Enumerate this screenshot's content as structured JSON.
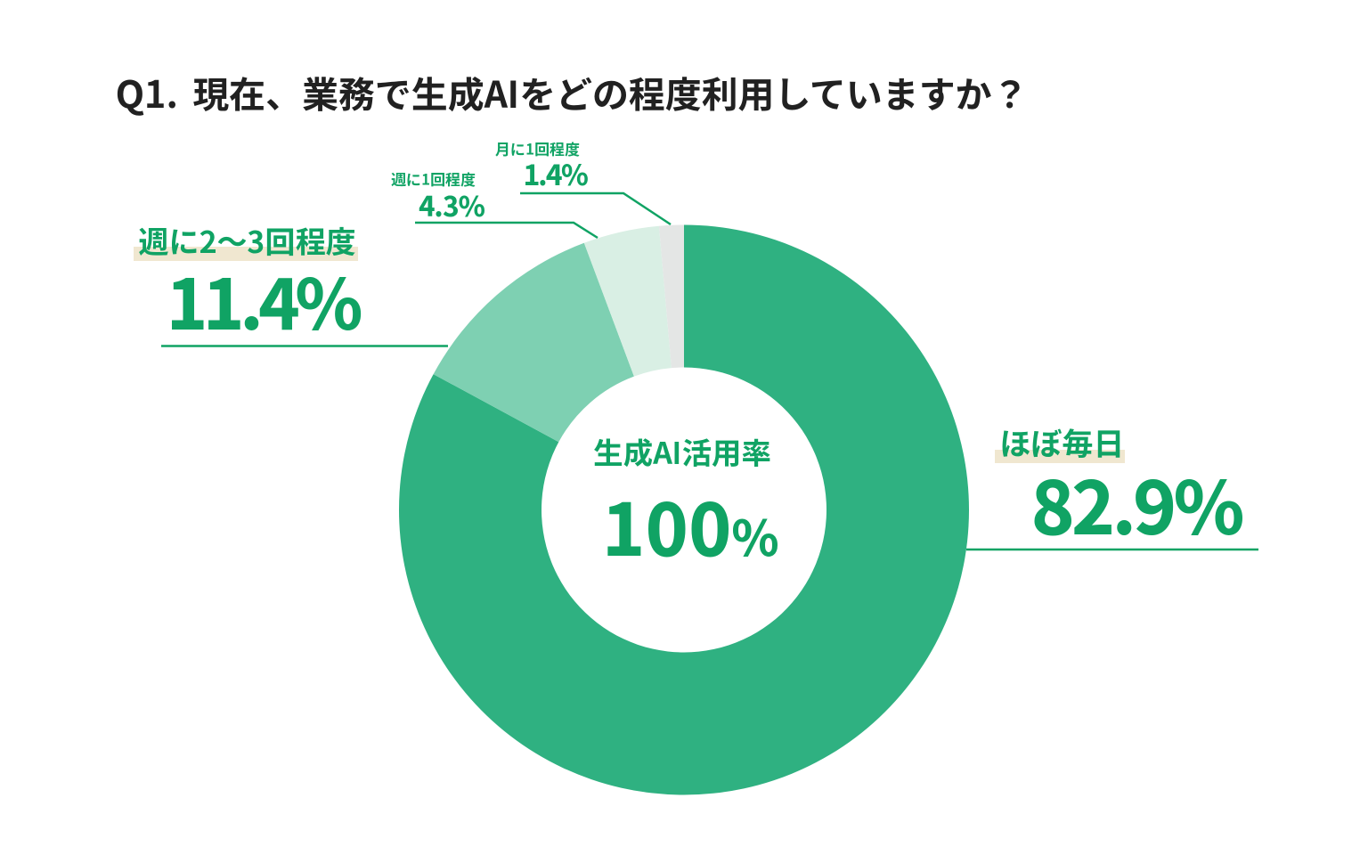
{
  "title": {
    "full": "Q1. 現在、業務で生成AIをどの程度利用していますか？",
    "prefix": "Q1.",
    "main": "現在、業務で生成AIをどの程度利用していますか？"
  },
  "center": {
    "label": "生成AI活用率",
    "value": "100",
    "unit": "%"
  },
  "colors": {
    "background": "#ffffff",
    "title_text": "#212121",
    "accent_text": "#10a364",
    "leader_line": "#10a364",
    "label_highlight": "#f0e7d0"
  },
  "chart_data": {
    "type": "pie",
    "subtype": "donut",
    "title": "Q1. 現在、業務で生成AIをどの程度利用していますか？",
    "center_label": "生成AI活用率",
    "center_value": "100%",
    "categories": [
      "ほぼ毎日",
      "週に2〜3回程度",
      "週に1回程度",
      "月に1回程度"
    ],
    "values": [
      82.9,
      11.4,
      4.3,
      1.4
    ],
    "unit": "%",
    "segments": [
      {
        "label": "ほぼ毎日",
        "value": 82.9,
        "display": "82.9%",
        "color": "#2fb181"
      },
      {
        "label": "週に2〜3回程度",
        "value": 11.4,
        "display": "11.4%",
        "color": "#7ed0b2"
      },
      {
        "label": "週に1回程度",
        "value": 4.3,
        "display": "4.3%",
        "color": "#d9efe4"
      },
      {
        "label": "月に1回程度",
        "value": 1.4,
        "display": "1.4%",
        "color": "#e4e6e5"
      }
    ],
    "start_angle_deg": 0,
    "direction": "clockwise",
    "donut_hole_ratio": 0.5,
    "legend_position": "callout-labels"
  }
}
